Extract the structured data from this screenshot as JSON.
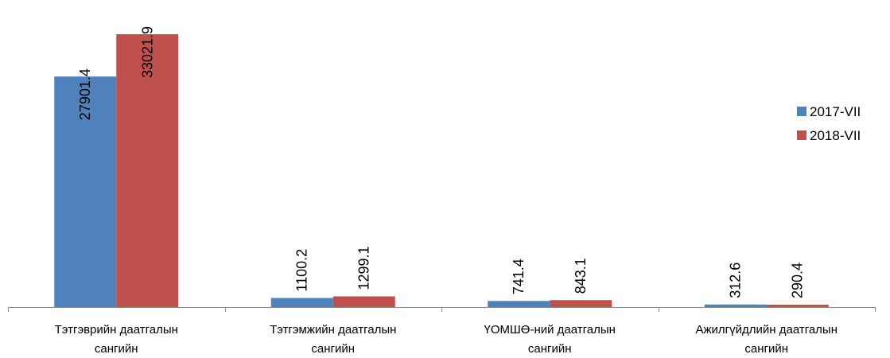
{
  "chart_data": {
    "type": "bar",
    "title": "",
    "xlabel": "",
    "ylabel": "",
    "categories": [
      [
        "Тэтгэврийн даатгалын",
        "сангийн"
      ],
      [
        "Тэтгэмжийн даатгалын",
        "сангийн"
      ],
      [
        "ҮОМШӨ-ний даатгалын",
        "сангийн"
      ],
      [
        "Ажилгүйдлийн даатгалын",
        "сангийн"
      ]
    ],
    "series": [
      {
        "name": "2017-VII",
        "color": "#4F81BD",
        "values": [
          27901.4,
          1100.2,
          741.4,
          312.6
        ],
        "labels": [
          "27901.4",
          "1100.2",
          "741.4",
          "312.6"
        ]
      },
      {
        "name": "2018-VII",
        "color": "#C0504D",
        "values": [
          33021.9,
          1299.1,
          843.1,
          290.4
        ],
        "labels": [
          "33021.9",
          "1299.1",
          "843.1",
          "290.4"
        ]
      }
    ],
    "ylim": [
      0,
      35000
    ],
    "grid": false,
    "legend_position": "right"
  }
}
